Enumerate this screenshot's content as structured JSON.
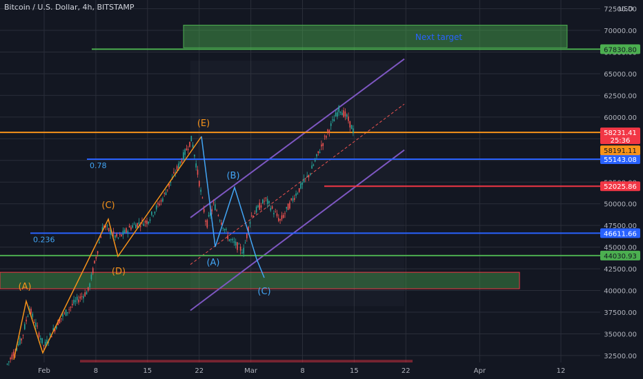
{
  "header": {
    "title": "Bitcoin / U.S. Dollar, 4h, BITSTAMP"
  },
  "axis": {
    "currency": "USD"
  },
  "chart_data": {
    "type": "line",
    "title": "Bitcoin / U.S. Dollar, 4h, BITSTAMP",
    "ylim": [
      31700,
      73500
    ],
    "y_ticks": [
      32500,
      35000,
      37500,
      40000,
      42500,
      45000,
      47500,
      50000,
      52500,
      55000,
      57500,
      60000,
      62500,
      65000,
      67500,
      70000,
      72500
    ],
    "y_tick_labels": [
      "32500.00",
      "35000.00",
      "37500.00",
      "40000.00",
      "42500.00",
      "45000.00",
      "47500.00",
      "50000.00",
      "52500.00",
      "55000.00",
      "57500.00",
      "60000.00",
      "62500.00",
      "65000.00",
      "67500.00",
      "70000.00",
      "72500.00"
    ],
    "x_tick_labels": [
      "Feb",
      "8",
      "15",
      "22",
      "Mar",
      "8",
      "15",
      "22",
      "Apr",
      "12"
    ],
    "horizontal_levels": [
      {
        "value": 67830.8,
        "label": "67830.80",
        "color": "#4caf50"
      },
      {
        "value": 58231.41,
        "label": "58231.41",
        "color": "#f7931a"
      },
      {
        "value": 55143.08,
        "label": "55143.08",
        "color": "#2962ff"
      },
      {
        "value": 52025.86,
        "label": "52025.86",
        "color": "#f23645"
      },
      {
        "value": 46611.66,
        "label": "46611.66",
        "color": "#2962ff"
      },
      {
        "value": 44030.93,
        "label": "44030.93",
        "color": "#4caf50"
      }
    ],
    "current_price": {
      "value": 58191.11,
      "label": "58191.11",
      "countdown": "25:36"
    },
    "fib_labels": [
      "0.78",
      "0.236"
    ],
    "zone_labels": [
      "Next target"
    ],
    "wave_labels": [
      "(A)",
      "(C)",
      "(D)",
      "(E)",
      "(B)",
      "(A)",
      "(C)"
    ],
    "price_path": [
      [
        "Jan 27",
        31500
      ],
      [
        "Jan 29",
        34500
      ],
      [
        "Jan 30",
        38000
      ],
      [
        "Feb 1",
        33500
      ],
      [
        "Feb 3",
        36500
      ],
      [
        "Feb 5",
        38500
      ],
      [
        "Feb 7",
        40000
      ],
      [
        "Feb 9",
        47500
      ],
      [
        "Feb 11",
        46000
      ],
      [
        "Feb 13",
        47500
      ],
      [
        "Feb 15",
        48000
      ],
      [
        "Feb 17",
        50500
      ],
      [
        "Feb 19",
        54000
      ],
      [
        "Feb 21",
        57500
      ],
      [
        "Feb 22",
        52500
      ],
      [
        "Feb 23",
        47500
      ],
      [
        "Feb 24",
        50000
      ],
      [
        "Feb 26",
        46000
      ],
      [
        "Feb 28",
        44500
      ],
      [
        "Mar 1",
        48500
      ],
      [
        "Mar 3",
        50500
      ],
      [
        "Mar 5",
        48000
      ],
      [
        "Mar 7",
        51000
      ],
      [
        "Mar 9",
        53500
      ],
      [
        "Mar 11",
        57500
      ],
      [
        "Mar 13",
        61000
      ],
      [
        "Mar 14",
        60000
      ],
      [
        "Mar 15",
        58191
      ]
    ]
  },
  "colors": {
    "background": "#131722",
    "grid": "#2a2e39",
    "orange_wave": "#f7931a",
    "blue_wave": "#42a5f5",
    "channel": "#7e57c2",
    "green_zone": "#4caf50",
    "red_zone": "#f23645",
    "candle_up": "#26a69a",
    "candle_down": "#ef5350"
  }
}
